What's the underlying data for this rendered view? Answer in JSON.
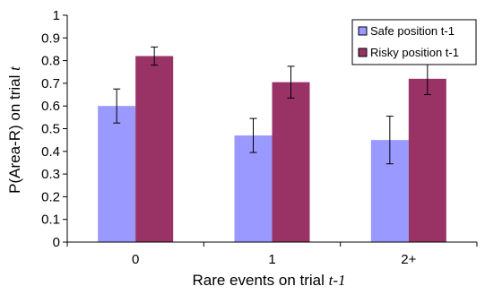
{
  "chart_data": {
    "type": "bar",
    "categories": [
      "0",
      "1",
      "2+"
    ],
    "series": [
      {
        "name": "Safe position t-1",
        "color": "#9999ff",
        "values": [
          0.6,
          0.47,
          0.45
        ],
        "error_low": [
          0.525,
          0.395,
          0.345
        ],
        "error_high": [
          0.675,
          0.545,
          0.555
        ]
      },
      {
        "name": "Risky position t-1",
        "color": "#993366",
        "values": [
          0.82,
          0.705,
          0.72
        ],
        "error_low": [
          0.78,
          0.635,
          0.65
        ],
        "error_high": [
          0.86,
          0.775,
          0.79
        ]
      }
    ],
    "xlabel": "Rare events on trial ",
    "xlabel_italic": "t-1",
    "ylabel": "P(Area-R) on trial ",
    "ylabel_italic": "t",
    "ylim": [
      0,
      1
    ],
    "yticks": [
      "0",
      "0.1",
      "0.2",
      "0.3",
      "0.4",
      "0.5",
      "0.6",
      "0.7",
      "0.8",
      "0.9",
      "1"
    ],
    "legend_position": "top-right",
    "grid": false
  }
}
